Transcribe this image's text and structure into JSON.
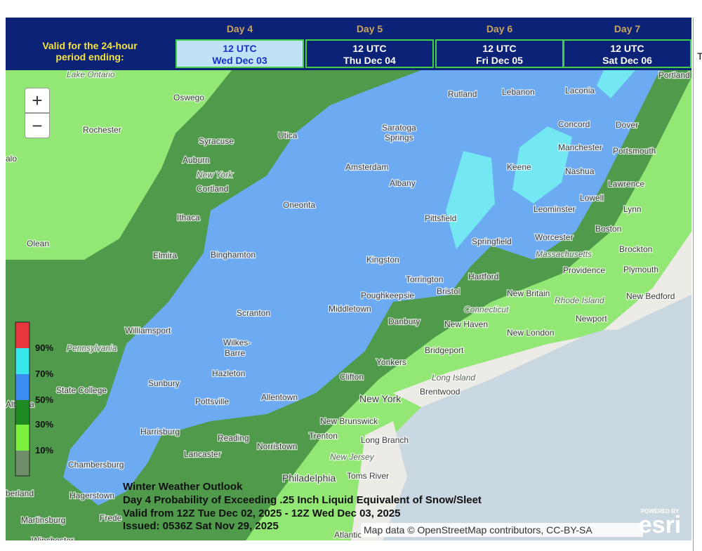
{
  "header": {
    "valid_label": [
      "Valid for the 24-hour",
      "period ending:"
    ]
  },
  "tabs": [
    {
      "day": "Day 4",
      "time": "12 UTC",
      "date": "Wed Dec 03",
      "selected": true
    },
    {
      "day": "Day 5",
      "time": "12 UTC",
      "date": "Thu Dec 04",
      "selected": false
    },
    {
      "day": "Day 6",
      "time": "12 UTC",
      "date": "Fri Dec 05",
      "selected": false
    },
    {
      "day": "Day 7",
      "time": "12 UTC",
      "date": "Sat Dec 06",
      "selected": false
    }
  ],
  "map": {
    "zoom_in": "+",
    "zoom_out": "−",
    "legend": [
      "90%",
      "70%",
      "50%",
      "30%",
      "10%"
    ],
    "places": [
      "Lake Ontario",
      "Oswego",
      "Rochester",
      "Syracuse",
      "Utica",
      "alo",
      "Auburn",
      "New York",
      "Cortland",
      "Ithaca",
      "Oneonta",
      "Olean",
      "Elmira",
      "Binghamton",
      "Saratoga",
      "Springs",
      "Amsterdam",
      "Albany",
      "Rutland",
      "Lebanon",
      "Laconia",
      "Portland",
      "Concord",
      "Dover",
      "Manchester",
      "Portsmouth",
      "Keene",
      "Nashua",
      "Lawrence",
      "Lowell",
      "Lynn",
      "Leominster",
      "Pittsfield",
      "Boston",
      "Springfield",
      "Worcester",
      "Massachusetts",
      "Brockton",
      "Plymouth",
      "Providence",
      "Kingston",
      "Torrington",
      "Hartford",
      "Bristol",
      "New Britain",
      "Rhode Island",
      "New Bedford",
      "Poughkeepsie",
      "Middletown",
      "Connecticut",
      "Newport",
      "Scranton",
      "Danbury",
      "New Haven",
      "New London",
      "Williamsport",
      "Pennsylvania",
      "Wilkes-",
      "Barre",
      "Bridgeport",
      "Yonkers",
      "Sunbury",
      "State College",
      "Hazleton",
      "Clifton",
      "Long Island",
      "Brentwood",
      "New York",
      "Altoona",
      "Pottsville",
      "Allentown",
      "New Brunswick",
      "Harrisburg",
      "Reading",
      "Trenton",
      "Long Branch",
      "Norristown",
      "Lancaster",
      "New Jersey",
      "Chambersburg",
      "Toms River",
      "Philadelphia",
      "berland",
      "Hagerstown",
      "Martinsburg",
      "Frede",
      "Atlantic",
      "Winchester"
    ],
    "caption": [
      "Winter Weather Outlook",
      "Day 4 Probability of Exceeding .25 Inch Liquid Equivalent of Snow/Sleet",
      "Valid from 12Z Tue Dec 02, 2025 - 12Z Wed Dec 03, 2025",
      "Issued: 0536Z Sat Nov 29, 2025"
    ],
    "attribution": "Map data © OpenStreetMap contributors, CC-BY-SA",
    "logo": {
      "top": "POWERED BY",
      "brand": "esri"
    }
  },
  "side_panel": {
    "text": "T"
  }
}
